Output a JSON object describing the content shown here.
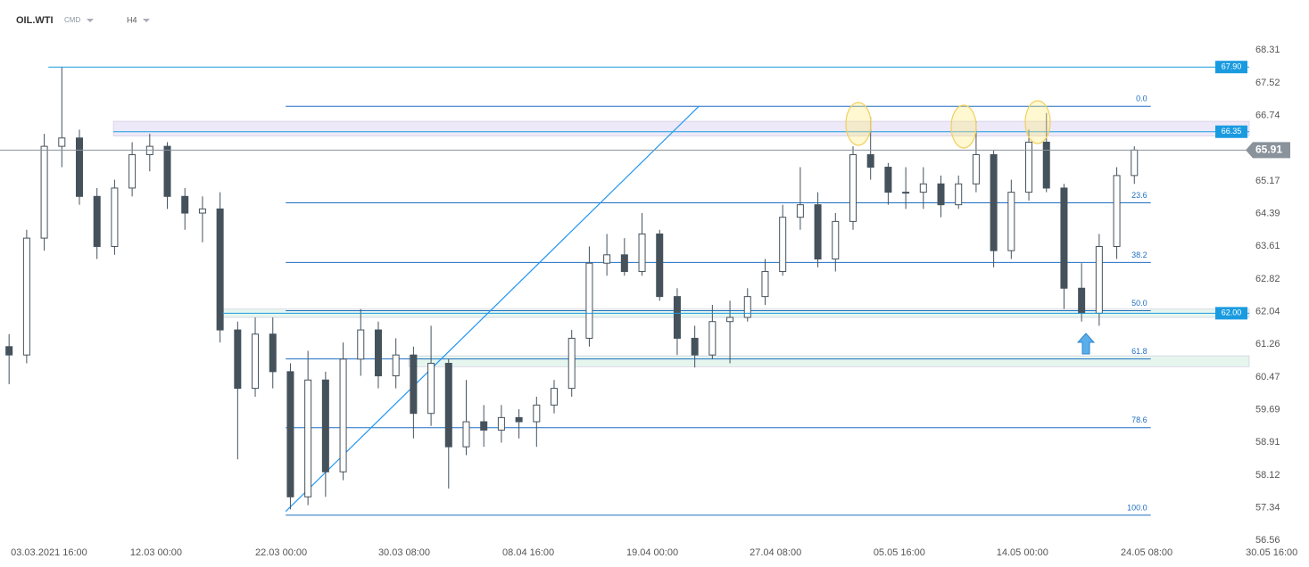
{
  "chart_data": {
    "type": "candlestick",
    "title": "OIL.WTI",
    "market": "CMD",
    "interval": "H4",
    "candles": {
      "open": [
        61.2,
        61.0,
        63.8,
        66.0,
        66.2,
        64.8,
        63.6,
        65.0,
        65.8,
        66.0,
        64.8,
        64.4,
        64.5,
        61.6,
        60.2,
        61.5,
        60.6,
        57.6,
        60.4,
        58.2,
        60.9,
        61.6,
        60.5,
        61.0,
        59.6,
        60.8,
        58.8,
        59.4,
        59.2,
        59.5,
        59.4,
        59.8,
        60.2,
        61.4,
        63.2,
        63.4,
        63.0,
        63.9,
        62.4,
        61.4,
        61.0,
        61.8,
        61.9,
        62.4,
        63.0,
        64.3,
        64.6,
        63.3,
        64.2,
        65.8,
        65.5,
        64.9,
        64.9,
        65.1,
        64.6,
        65.1,
        65.8,
        63.5,
        64.9,
        66.1,
        65.0,
        62.6,
        62.0,
        63.6,
        65.3
      ],
      "high": [
        61.5,
        64.0,
        66.3,
        67.9,
        66.4,
        65.0,
        65.2,
        66.1,
        66.3,
        66.1,
        65.0,
        64.8,
        64.9,
        61.8,
        61.9,
        61.9,
        60.8,
        61.1,
        60.6,
        61.3,
        62.1,
        61.8,
        61.4,
        61.2,
        61.7,
        60.9,
        60.4,
        59.8,
        59.8,
        59.7,
        60.0,
        60.4,
        61.6,
        63.6,
        63.9,
        63.8,
        64.4,
        64.0,
        62.6,
        61.7,
        62.2,
        62.3,
        62.6,
        63.3,
        64.6,
        65.5,
        64.9,
        64.4,
        66.0,
        66.7,
        65.6,
        65.5,
        65.5,
        65.3,
        65.3,
        66.6,
        65.9,
        65.2,
        66.4,
        66.8,
        65.1,
        63.2,
        63.9,
        65.5,
        66.0
      ],
      "low": [
        60.3,
        60.8,
        63.5,
        65.5,
        64.6,
        63.3,
        63.4,
        64.8,
        65.4,
        64.5,
        64.0,
        63.7,
        61.3,
        58.5,
        60.0,
        60.2,
        57.3,
        57.4,
        57.6,
        58.0,
        60.5,
        60.2,
        60.2,
        59.0,
        59.3,
        57.8,
        58.6,
        58.8,
        58.9,
        59.0,
        58.8,
        59.6,
        60.0,
        61.2,
        62.9,
        62.9,
        62.9,
        62.3,
        61.0,
        60.7,
        60.9,
        60.8,
        61.8,
        62.2,
        62.9,
        64.0,
        63.1,
        63.0,
        64.0,
        65.2,
        64.6,
        64.5,
        64.5,
        64.3,
        64.5,
        64.9,
        63.1,
        63.3,
        64.7,
        64.9,
        62.1,
        61.8,
        61.7,
        63.3,
        65.1
      ],
      "close": [
        61.0,
        63.8,
        66.0,
        66.2,
        64.8,
        63.6,
        65.0,
        65.8,
        66.0,
        64.8,
        64.4,
        64.5,
        61.6,
        60.2,
        61.5,
        60.6,
        57.6,
        60.4,
        58.2,
        60.9,
        61.6,
        60.5,
        61.0,
        59.6,
        60.8,
        58.8,
        59.4,
        59.2,
        59.5,
        59.4,
        59.8,
        60.2,
        61.4,
        63.2,
        63.4,
        63.0,
        63.9,
        62.4,
        61.4,
        61.0,
        61.8,
        61.9,
        62.4,
        63.0,
        64.3,
        64.6,
        63.3,
        64.2,
        65.8,
        65.5,
        64.9,
        64.9,
        65.1,
        64.6,
        65.1,
        65.8,
        63.5,
        64.9,
        66.1,
        65.0,
        62.6,
        62.0,
        63.6,
        65.3,
        65.91
      ],
      "up_color": "#ffffff",
      "down_color": "#45525c",
      "line_color": "#45525c"
    },
    "xlim": [
      -0.25,
      70.8
    ],
    "xticks": [
      {
        "value": 2.54,
        "label": "03.03.2021  16:00"
      },
      {
        "value": 8.63,
        "label": "12.03  00:00"
      },
      {
        "value": 15.74,
        "label": "22.03  00:00"
      },
      {
        "value": 22.74,
        "label": "30.03  08:00"
      },
      {
        "value": 29.8,
        "label": "08.04  16:00"
      },
      {
        "value": 36.85,
        "label": "19.04  00:00"
      },
      {
        "value": 43.86,
        "label": "27.04  08:00"
      },
      {
        "value": 50.9,
        "label": "05.05  16:00"
      },
      {
        "value": 57.9,
        "label": "14.05  00:00"
      },
      {
        "value": 64.97,
        "label": "24.05  08:00"
      },
      {
        "value": 72.08,
        "label": "30.05  16:00"
      }
    ],
    "ylim": [
      56.56,
      68.31
    ],
    "yticks": [
      68.31,
      67.52,
      66.74,
      65.17,
      64.39,
      63.61,
      62.82,
      62.04,
      61.26,
      60.47,
      59.69,
      58.91,
      58.12,
      57.34,
      56.56
    ],
    "zones": [
      {
        "from": 6.2,
        "low": 66.25,
        "high": 66.6,
        "color": "#ede9f8"
      },
      {
        "from": 12.4,
        "low": 61.9,
        "high": 62.1,
        "color": "#e6f6ee"
      },
      {
        "from": 23.0,
        "low": 60.72,
        "high": 60.98,
        "color": "#e6f6ee"
      }
    ],
    "levels": [
      {
        "from": 2.5,
        "price": {
          "value": 67.9,
          "label": "67.90"
        },
        "color": "#1a9be0"
      },
      {
        "from": 6.2,
        "price": {
          "value": 66.35,
          "label": "66.35"
        },
        "color": "#1a9be0"
      },
      {
        "from": 12.4,
        "price": {
          "value": 62.0,
          "label": "62.00"
        },
        "color": "#1a9be0"
      }
    ],
    "current_price": 65.91,
    "fib": {
      "high": 66.96,
      "low": 57.16,
      "from": 16.0,
      "to": 65.2,
      "color": "#1f6fc2",
      "levels": [
        {
          "value": 0,
          "label": "0.0"
        },
        23.6,
        38.2,
        {
          "value": 50,
          "label": "50.0"
        },
        61.8,
        78.6,
        {
          "value": 100,
          "label": "100.0"
        }
      ]
    },
    "trendline": {
      "x": [
        16.0,
        39.5
      ],
      "y": [
        57.25,
        66.96
      ],
      "color": "#2196f3"
    }
  }
}
